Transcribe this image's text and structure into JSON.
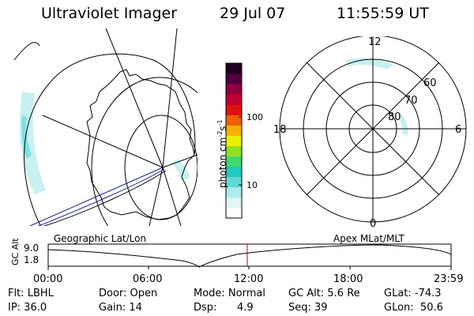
{
  "header": {
    "title": "Ultraviolet Imager",
    "date": "29 Jul 07",
    "time": "11:55:59 UT"
  },
  "colorbar": {
    "label": "photon cm",
    "label_sup1": "-2",
    "label_mid": "s",
    "label_sup2": "-1",
    "tick_100": "100",
    "tick_10": "10",
    "colors": [
      "#ffffff",
      "#e0f6f6",
      "#b0ecec",
      "#60d8d8",
      "#20c8c0",
      "#40d870",
      "#90e020",
      "#e8f000",
      "#f8b000",
      "#f06000",
      "#e01010",
      "#c00030",
      "#900040",
      "#500040",
      "#200020"
    ]
  },
  "polar": {
    "lat_60": "60",
    "lat_70": "70",
    "lat_80": "80",
    "mlt_12": "12",
    "mlt_18": "18",
    "mlt_6": "6",
    "mlt_0": "0"
  },
  "strip": {
    "ylabel": "GC Alt",
    "ytick_top": "9.0",
    "ytick_bottom": "1.8",
    "left_title": "Geographic Lat/Lon",
    "right_title": "Apex MLat/MLT",
    "xticks": [
      "00:00",
      "06:00",
      "12:00",
      "18:00",
      "23:59"
    ]
  },
  "info": {
    "flt": "Flt: LBHL",
    "ip": "IP: 36.0",
    "door": "Door: Open",
    "gain": "Gain: 14",
    "mode": "Mode: Normal",
    "dsp_label": "Dsp:",
    "dsp_value": "4.9",
    "gc_alt": "GC Alt: 5.6 Re",
    "seq": "Seq: 39",
    "glat": "GLat: -74.3",
    "glon": "GLon:  50.6"
  },
  "icons": {
    "geo_map": "geographic-projection-map",
    "polar_plot": "magnetic-polar-dial",
    "orbit_plot": "orbit-altitude-trace"
  },
  "accent": {
    "orbit_marker": "#cc0000",
    "dayside_track": "#1a1a99",
    "aurora_low": "#b8ecec",
    "aurora_mid": "#40d0c8"
  }
}
